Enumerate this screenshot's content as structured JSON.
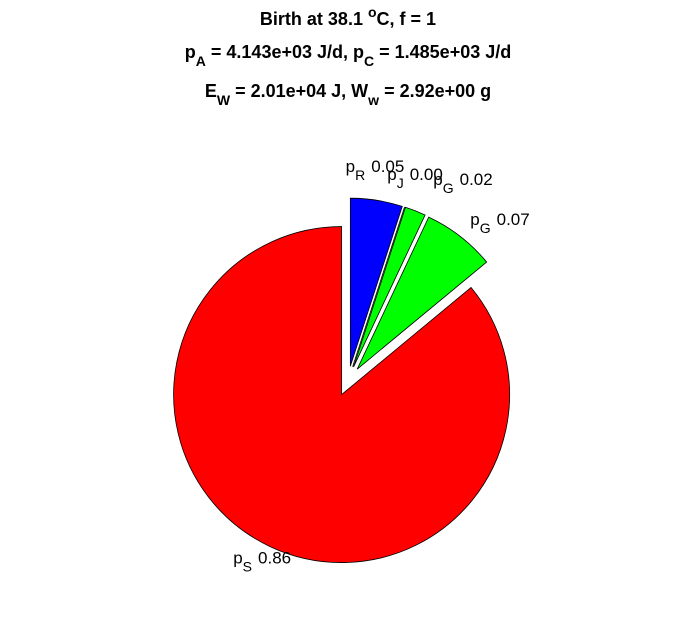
{
  "chart_data": {
    "type": "pie",
    "title": [
      [
        "Birth at 38.1 ",
        {
          "sup": "o"
        },
        "C, f = 1"
      ],
      [
        "p",
        {
          "sub": "A"
        },
        " = 4.143e+03 J/d, p",
        {
          "sub": "C"
        },
        " = 1.485e+03 J/d"
      ],
      [
        "E",
        {
          "sub": "W"
        },
        " = 2.01e+04 J, W",
        {
          "sub": "w"
        },
        " = 2.92e+00 g"
      ]
    ],
    "categories": [
      {
        "text": "p",
        "sub": "R"
      },
      {
        "text": "p",
        "sub": "J"
      },
      {
        "text": "p",
        "sub": "G"
      },
      {
        "text": "p",
        "sub": "G"
      },
      {
        "text": "p",
        "sub": "S"
      }
    ],
    "values": [
      0.05,
      0.0,
      0.02,
      0.07,
      0.86
    ],
    "value_labels": [
      "0.05",
      "0.00",
      "0.02",
      "0.07",
      "0.86"
    ],
    "colors": [
      "#0000ff",
      "#c000c0",
      "#00ff00",
      "#00ff00",
      "#ff0000"
    ],
    "exploded": true
  }
}
